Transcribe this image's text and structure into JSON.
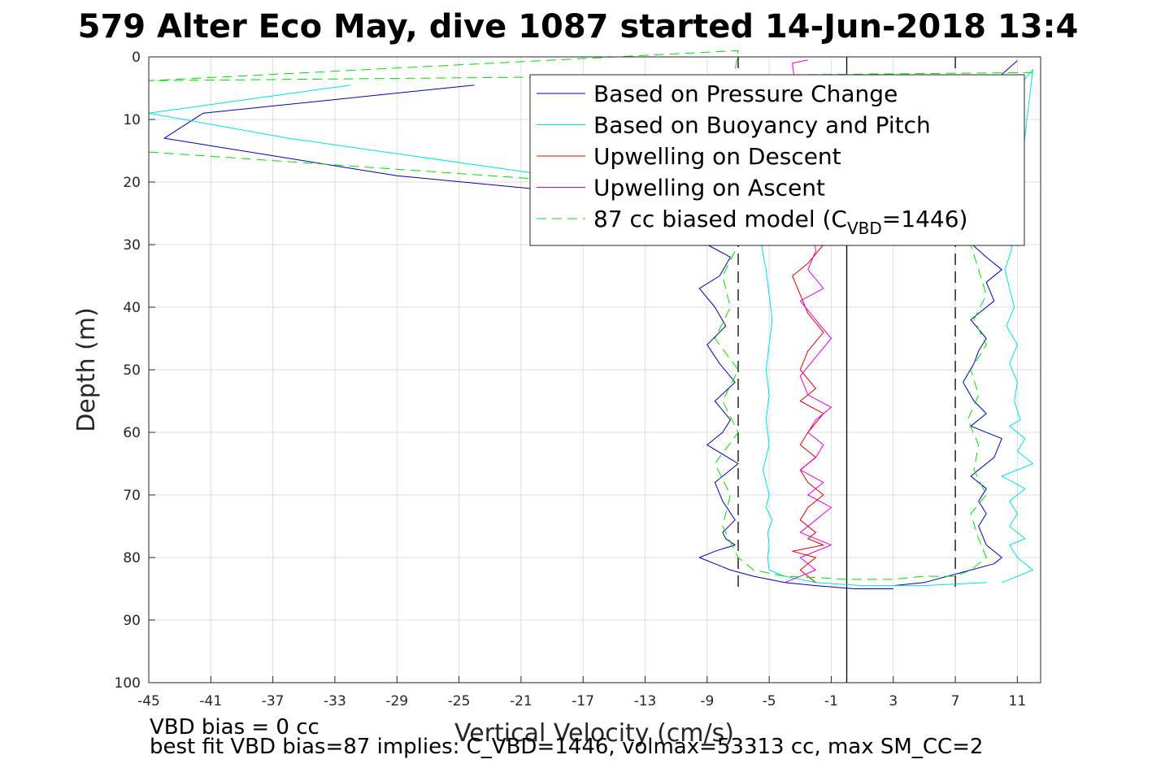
{
  "chart_data": {
    "type": "line",
    "title": "579 Alter Eco May, dive 1087 started 14-Jun-2018 13:4",
    "xlabel": "Vertical Velocity (cm/s)",
    "ylabel": "Depth (m)",
    "xlim": [
      -45,
      12.5
    ],
    "ylim": [
      0,
      100
    ],
    "y_reversed": true,
    "grid": true,
    "legend_position": "top-right",
    "xticks": [
      "-45",
      "-41",
      "-37",
      "-33",
      "-29",
      "-25",
      "-21",
      "-17",
      "-13",
      "-9",
      "-5",
      "-1",
      "3",
      "7",
      "11"
    ],
    "yticks": [
      "0",
      "10",
      "20",
      "30",
      "40",
      "50",
      "60",
      "70",
      "80",
      "90",
      "100"
    ],
    "reference_lines": [
      {
        "x": 0,
        "style": "solid",
        "color": "#000000"
      },
      {
        "x": -7,
        "style": "dashed",
        "color": "#000000",
        "y_range": [
          0,
          85
        ]
      },
      {
        "x": 7,
        "style": "dashed",
        "color": "#000000",
        "y_range": [
          0,
          85
        ]
      }
    ],
    "legend": {
      "entries": [
        {
          "label": "Based on Pressure Change",
          "color": "#0000b0",
          "dash": "solid"
        },
        {
          "label": "Based on Buoyancy and Pitch",
          "color": "#00e0e0",
          "dash": "solid"
        },
        {
          "label": "Upwelling on Descent",
          "color": "#e00000",
          "dash": "solid"
        },
        {
          "label": "Upwelling on Ascent",
          "color": "#e000e0",
          "dash": "solid"
        },
        {
          "label_prefix": "87 cc biased model (C",
          "label_sub": "VBD",
          "label_suffix": "=1446)",
          "color": "#00dd00",
          "dash": "dashed"
        }
      ]
    },
    "series": [
      {
        "name": "Based on Pressure Change",
        "color": "#0000b0",
        "dash": "solid",
        "x": [
          -24,
          -41.5,
          -44,
          -29,
          -20.5,
          -9,
          -7.5,
          -8.2,
          -9.5,
          -8.5,
          -7.8,
          -9,
          -8.2,
          -7.2,
          -8.5,
          -7.5,
          -8,
          -9,
          -7,
          -8.5,
          -8,
          -7.2,
          -8,
          -7.8,
          -7.2,
          -8.5,
          -9.5,
          -7.5,
          -6,
          -4,
          -2,
          0.5,
          3
        ],
        "y": [
          4.5,
          9,
          13,
          19,
          21,
          30,
          32,
          35,
          37,
          40,
          43,
          46,
          49,
          52,
          55,
          58,
          60,
          62,
          65,
          68,
          71,
          74,
          76,
          77,
          78,
          79,
          80,
          82,
          83,
          84,
          84.5,
          85,
          85
        ]
      },
      {
        "name": "Based on Pressure Change",
        "color": "#0000b0",
        "dash": "solid",
        "x": [
          3,
          5,
          8,
          9.5,
          10,
          9,
          8.5,
          9,
          8.5,
          9,
          8,
          9.5,
          10,
          8,
          9,
          8.2,
          7.5,
          8.2,
          8.5,
          9,
          8,
          9.5,
          9,
          10,
          9,
          7.2,
          8,
          7.5,
          9,
          11
        ],
        "y": [
          84.5,
          84,
          82,
          81,
          80,
          78,
          75,
          73,
          71,
          69,
          67,
          64,
          61,
          59,
          57,
          55,
          52,
          49,
          47,
          45,
          42,
          39,
          36,
          34,
          32,
          28,
          20,
          12,
          5,
          0.6
        ]
      },
      {
        "name": "Based on Buoyancy and Pitch",
        "color": "#00e0e0",
        "dash": "solid",
        "x": [
          -32,
          -45,
          -36,
          -19,
          -5.5,
          -5.2,
          -5,
          -4.8,
          -5,
          -5.2,
          -5,
          -5.2,
          -5,
          -5.4,
          -5,
          -5.2,
          -4.8,
          -5.1,
          -5,
          -5.1,
          -5,
          -4,
          -2,
          1,
          5,
          9
        ],
        "y": [
          4.5,
          9,
          13,
          19,
          30,
          34,
          38,
          42,
          46,
          50,
          54,
          58,
          62,
          66,
          70,
          72,
          74,
          76,
          78,
          80,
          82,
          83,
          84,
          84.5,
          84.5,
          84
        ]
      },
      {
        "name": "Based on Buoyancy and Pitch",
        "color": "#00e0e0",
        "dash": "solid",
        "x": [
          10,
          12,
          11,
          10.5,
          11.5,
          10.5,
          11,
          10.5,
          11.5,
          10,
          12,
          11,
          11.5,
          10.5,
          11.2,
          10.8,
          11,
          10.5,
          11,
          10.3,
          10.8,
          10.5,
          10.2,
          10.6,
          12,
          11
        ],
        "y": [
          84,
          82,
          80,
          78,
          77,
          75,
          73,
          71,
          69,
          67,
          65,
          63,
          61,
          59,
          58,
          55,
          52,
          49,
          46,
          43,
          40,
          37,
          34,
          31,
          2,
          5
        ]
      },
      {
        "name": "Upwelling on Descent",
        "color": "#e00000",
        "dash": "solid",
        "x": [
          -1.5,
          -2.5,
          -3.5,
          -3,
          -2.5,
          -1.5,
          -2.5,
          -3,
          -2,
          -3,
          -1.5,
          -2.5,
          -3,
          -2,
          -3,
          -2.5,
          -1.5,
          -2.5,
          -3,
          -2,
          -2.5,
          -1.5,
          -3.5,
          -2,
          -3,
          -2.5,
          -2
        ],
        "y": [
          30,
          33,
          35,
          38,
          41,
          44,
          47,
          50,
          53,
          55,
          57,
          60,
          62,
          64,
          66,
          68,
          70,
          72,
          74,
          76,
          77,
          78,
          79,
          80,
          82,
          83,
          84
        ]
      },
      {
        "name": "Upwelling on Ascent",
        "color": "#e000e0",
        "dash": "solid",
        "x": [
          -4,
          -2,
          -3,
          -1,
          -3,
          -2,
          -1,
          -2.5,
          -1.5,
          -3,
          -2,
          -1.5,
          -2.5,
          -2,
          -1,
          -2.5,
          -3,
          -2,
          -1,
          -2,
          -3,
          -1.5,
          -2.5,
          -2,
          -3.5,
          -2.5
        ],
        "y": [
          84,
          82,
          80,
          78,
          76,
          74,
          72,
          70,
          68,
          66,
          64,
          62,
          60,
          58,
          56,
          54,
          51,
          48,
          45,
          42,
          39,
          37,
          34,
          31,
          1,
          0.5
        ]
      },
      {
        "name": "87 cc biased model (C_VBD=1446)",
        "color": "#00dd00",
        "dash": "dashed",
        "x": [
          12,
          -45,
          -7,
          -8,
          -8.5,
          -7,
          -8,
          -7.5,
          -8.5,
          -7,
          -8,
          -7,
          -8.5,
          -7.5,
          -8,
          -7,
          -6,
          -4,
          -2,
          0,
          3,
          5,
          7,
          8,
          9,
          8.5,
          8,
          9,
          8.2,
          8.5,
          7.8,
          8.5,
          8,
          9,
          8.2,
          9,
          8.5,
          8
        ],
        "y": [
          2.5,
          3.8,
          -1,
          15,
          16,
          30,
          35,
          40,
          45,
          50,
          55,
          60,
          65,
          70,
          75,
          80,
          82,
          83,
          83.2,
          83.5,
          83.5,
          83,
          83,
          82,
          80,
          77,
          73,
          70,
          66,
          62,
          58,
          54,
          50,
          46,
          42,
          38,
          34,
          30
        ]
      },
      {
        "name": "87 cc biased model (C_VBD=1446)",
        "color": "#00dd00",
        "dash": "dashed",
        "x": [
          -45,
          -20
        ],
        "y": [
          15.2,
          19.5
        ]
      }
    ]
  },
  "footer": {
    "line1": "VBD bias = 0 cc",
    "line2": "best fit VBD bias=87 implies: C_VBD=1446, volmax=53313 cc, max SM_CC=2"
  }
}
